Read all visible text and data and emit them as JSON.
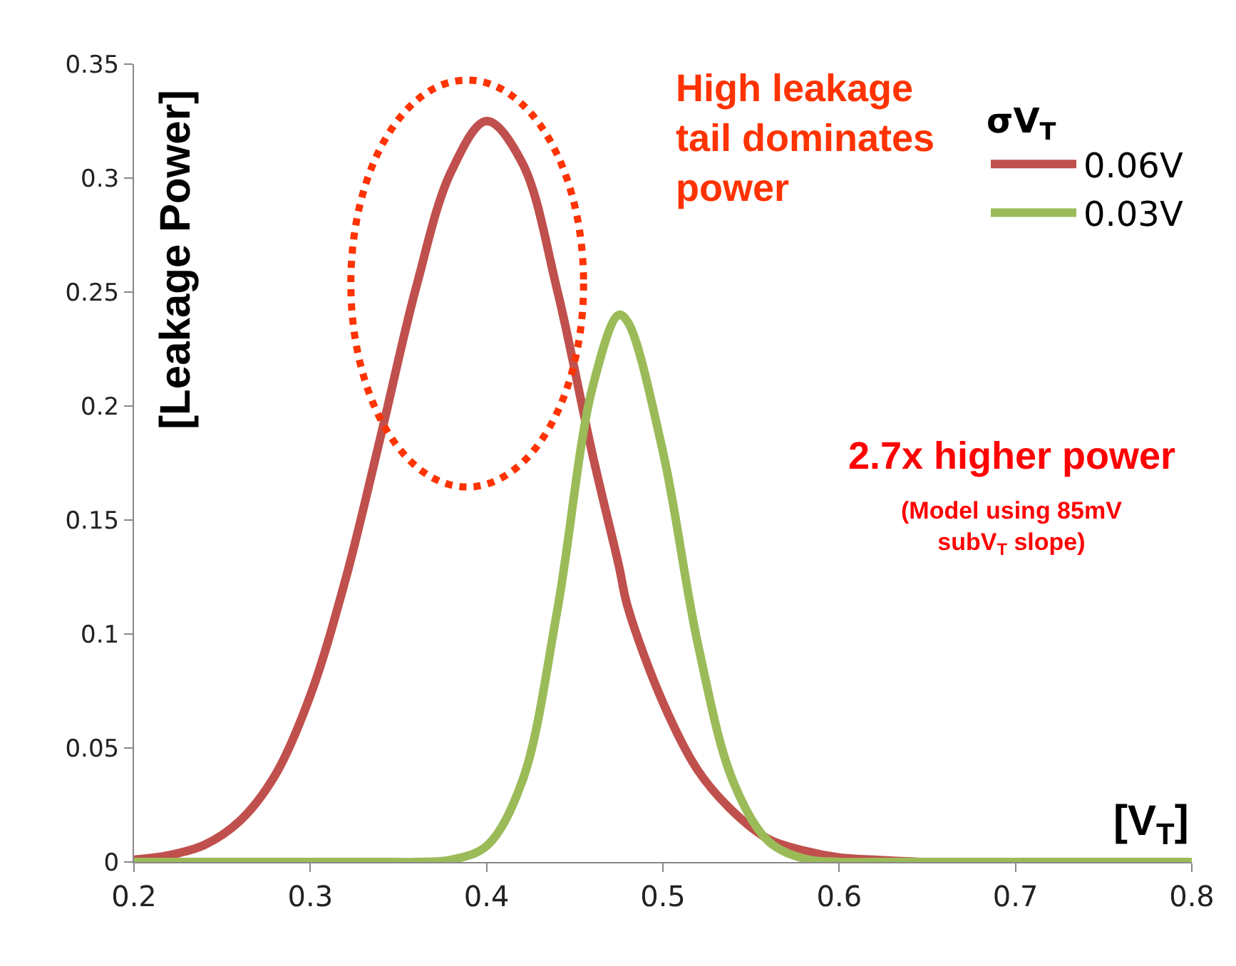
{
  "chart_data": {
    "type": "line",
    "xlabel": "[V$_{T}$]",
    "ylabel": "[Leakage Power]",
    "legend_title": "σV$_{T}$",
    "x": [
      0.2,
      0.22,
      0.24,
      0.26,
      0.28,
      0.3,
      0.32,
      0.34,
      0.36,
      0.38,
      0.4,
      0.42,
      0.44,
      0.46,
      0.475,
      0.48,
      0.5,
      0.52,
      0.54,
      0.56,
      0.58,
      0.6,
      0.62,
      0.65,
      0.7,
      0.75,
      0.8
    ],
    "series": [
      {
        "name": "0.06V",
        "color": "#c0504d",
        "values": [
          0.001,
          0.003,
          0.0075,
          0.018,
          0.038,
          0.073,
          0.124,
          0.187,
          0.252,
          0.303,
          0.325,
          0.307,
          0.251,
          0.179,
          0.13,
          0.112,
          0.07,
          0.04,
          0.022,
          0.01,
          0.005,
          0.002,
          0.001,
          0,
          0,
          null,
          null
        ]
      },
      {
        "name": "0.03V",
        "color": "#9bbb59",
        "values": [
          0,
          0,
          0,
          0,
          0,
          0,
          0,
          0,
          0,
          0.001,
          0.007,
          0.035,
          0.11,
          0.208,
          0.24,
          0.237,
          0.18,
          0.095,
          0.035,
          0.009,
          0.0015,
          0,
          0,
          0,
          0,
          0,
          0
        ]
      }
    ],
    "xlim": [
      0.2,
      0.8
    ],
    "xticks": [
      0.2,
      0.3,
      0.4,
      0.5,
      0.6,
      0.7,
      0.8
    ],
    "ylim": [
      0,
      0.35
    ],
    "yticks": [
      0,
      0.05,
      0.1,
      0.15,
      0.2,
      0.25,
      0.3,
      0.35
    ],
    "legend": "top right",
    "marker": "none",
    "line_style": "solid",
    "annotations": [
      "High leakage\ntail dominates\npower",
      "2.7x higher power",
      "(Model using 85mV\nsubV$_{T}$ slope)"
    ]
  }
}
